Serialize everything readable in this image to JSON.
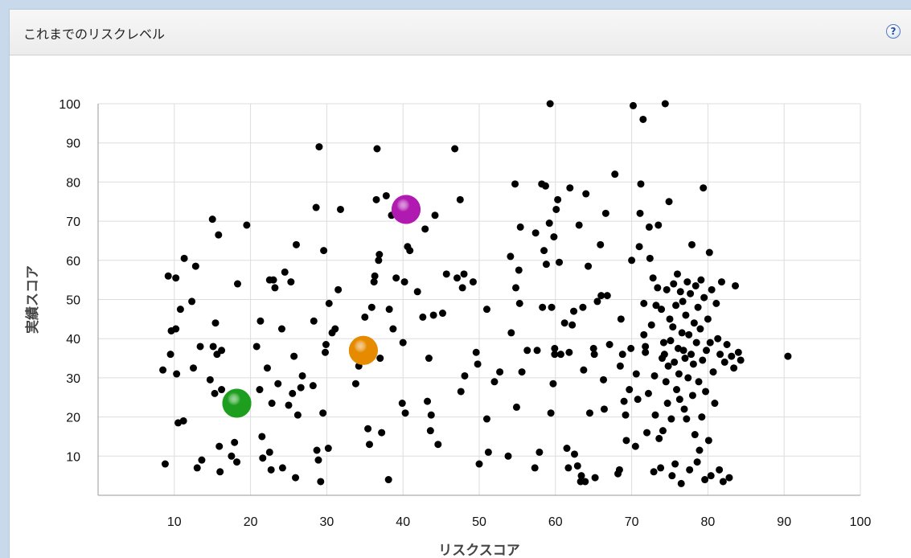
{
  "panel": {
    "title": "これまでのリスクレベル",
    "help_icon": "help-icon",
    "help_label": "?"
  },
  "chart_data": {
    "type": "scatter",
    "title": "",
    "xlabel": "リスクスコア",
    "ylabel": "実績スコア",
    "xlim": [
      0,
      100
    ],
    "ylim": [
      0,
      100
    ],
    "x_ticks": [
      10,
      20,
      30,
      40,
      50,
      60,
      70,
      80,
      90,
      100
    ],
    "y_ticks": [
      10,
      20,
      30,
      40,
      50,
      60,
      70,
      80,
      90,
      100
    ],
    "grid": true,
    "legend": "none",
    "colors": {
      "points": "#000000",
      "highlight_green": "#1e9e1e",
      "highlight_orange": "#e68a00",
      "highlight_purple": "#b01ab0",
      "grid": "#dddddd",
      "axis": "#999999"
    },
    "highlighted_points": [
      {
        "x": 18.2,
        "y": 23.5,
        "color": "#1e9e1e"
      },
      {
        "x": 34.8,
        "y": 37.0,
        "color": "#e68a00"
      },
      {
        "x": 40.4,
        "y": 73.0,
        "color": "#b01ab0"
      }
    ],
    "series": [
      {
        "points": [
          [
            8.5,
            32
          ],
          [
            8.8,
            8
          ],
          [
            9.2,
            56
          ],
          [
            9.5,
            36
          ],
          [
            9.6,
            42
          ],
          [
            10.2,
            42.5
          ],
          [
            10.2,
            55.5
          ],
          [
            10.3,
            31
          ],
          [
            10.5,
            18.5
          ],
          [
            10.8,
            47.5
          ],
          [
            11.2,
            19
          ],
          [
            11.3,
            60.5
          ],
          [
            12.3,
            49.5
          ],
          [
            12.5,
            32.5
          ],
          [
            12.8,
            58.5
          ],
          [
            13.0,
            7
          ],
          [
            13.4,
            38
          ],
          [
            13.6,
            9
          ],
          [
            14.7,
            29.5
          ],
          [
            15.0,
            70.5
          ],
          [
            15.1,
            38
          ],
          [
            15.3,
            26
          ],
          [
            15.4,
            44
          ],
          [
            15.6,
            36
          ],
          [
            15.8,
            66.5
          ],
          [
            15.9,
            12.5
          ],
          [
            16.0,
            6
          ],
          [
            16.2,
            27
          ],
          [
            16.2,
            37
          ],
          [
            17.5,
            10
          ],
          [
            17.9,
            13.5
          ],
          [
            18.2,
            8.5
          ],
          [
            18.3,
            54
          ],
          [
            19.5,
            69
          ],
          [
            20.8,
            38
          ],
          [
            21.2,
            27
          ],
          [
            21.3,
            44.5
          ],
          [
            21.5,
            15
          ],
          [
            21.6,
            9.5
          ],
          [
            22.2,
            32.5
          ],
          [
            22.5,
            55
          ],
          [
            22.5,
            11
          ],
          [
            22.7,
            6.5
          ],
          [
            22.8,
            23.5
          ],
          [
            23.0,
            55
          ],
          [
            23.2,
            53
          ],
          [
            23.6,
            28.5
          ],
          [
            24.1,
            42.5
          ],
          [
            24.2,
            7
          ],
          [
            24.5,
            57
          ],
          [
            25.0,
            23
          ],
          [
            25.3,
            54.5
          ],
          [
            25.5,
            26
          ],
          [
            25.7,
            35.5
          ],
          [
            25.9,
            4.5
          ],
          [
            26.0,
            64
          ],
          [
            26.2,
            20.5
          ],
          [
            26.6,
            27.5
          ],
          [
            26.8,
            30.5
          ],
          [
            28.2,
            28
          ],
          [
            28.3,
            44.5
          ],
          [
            28.6,
            73.5
          ],
          [
            28.7,
            11.5
          ],
          [
            28.9,
            9
          ],
          [
            29.0,
            89
          ],
          [
            29.2,
            3.5
          ],
          [
            29.5,
            21
          ],
          [
            29.6,
            62.5
          ],
          [
            29.8,
            36.5
          ],
          [
            29.9,
            38.5
          ],
          [
            30.2,
            12
          ],
          [
            30.3,
            49
          ],
          [
            30.7,
            41.5
          ],
          [
            31.1,
            42.5
          ],
          [
            31.5,
            52.5
          ],
          [
            31.8,
            73
          ],
          [
            33.8,
            28.5
          ],
          [
            34.2,
            33
          ],
          [
            35.0,
            45.5
          ],
          [
            35.2,
            36.5
          ],
          [
            35.4,
            17
          ],
          [
            35.6,
            13
          ],
          [
            35.9,
            48
          ],
          [
            36.2,
            54.5
          ],
          [
            36.3,
            56
          ],
          [
            36.5,
            75.5
          ],
          [
            36.6,
            88.5
          ],
          [
            36.8,
            60
          ],
          [
            36.9,
            61.5
          ],
          [
            37.0,
            35
          ],
          [
            37.2,
            16
          ],
          [
            37.8,
            76.5
          ],
          [
            38.1,
            4
          ],
          [
            38.2,
            47.5
          ],
          [
            38.5,
            71.5
          ],
          [
            38.7,
            42.5
          ],
          [
            39.1,
            55.5
          ],
          [
            39.9,
            23.5
          ],
          [
            40.0,
            39
          ],
          [
            40.2,
            54.5
          ],
          [
            40.3,
            21
          ],
          [
            40.6,
            63.5
          ],
          [
            40.9,
            62.5
          ],
          [
            41.9,
            52
          ],
          [
            42.6,
            45.5
          ],
          [
            42.9,
            68
          ],
          [
            43.2,
            24
          ],
          [
            43.4,
            35
          ],
          [
            43.6,
            16.5
          ],
          [
            43.7,
            20.5
          ],
          [
            44.0,
            46
          ],
          [
            44.2,
            71.5
          ],
          [
            44.6,
            13
          ],
          [
            45.2,
            46.5
          ],
          [
            45.7,
            56.5
          ],
          [
            46.8,
            88.5
          ],
          [
            47.1,
            55.5
          ],
          [
            47.5,
            75.5
          ],
          [
            47.6,
            26.5
          ],
          [
            47.8,
            53
          ],
          [
            48.0,
            56.5
          ],
          [
            48.1,
            30.5
          ],
          [
            49.2,
            54.5
          ],
          [
            49.6,
            36.5
          ],
          [
            49.8,
            33.5
          ],
          [
            50.0,
            8
          ],
          [
            51.0,
            47.5
          ],
          [
            51.0,
            19.5
          ],
          [
            51.2,
            11
          ],
          [
            52.0,
            29
          ],
          [
            52.7,
            31.5
          ],
          [
            53.8,
            10
          ],
          [
            54.1,
            61
          ],
          [
            54.2,
            41.5
          ],
          [
            54.7,
            79.5
          ],
          [
            54.8,
            53
          ],
          [
            54.9,
            22.5
          ],
          [
            55.2,
            57.5
          ],
          [
            55.3,
            49
          ],
          [
            55.4,
            68.5
          ],
          [
            55.6,
            31.5
          ],
          [
            56.3,
            37
          ],
          [
            57.3,
            7
          ],
          [
            57.4,
            67
          ],
          [
            57.6,
            37
          ],
          [
            57.9,
            11
          ],
          [
            58.2,
            79.5
          ],
          [
            58.3,
            48
          ],
          [
            58.5,
            62.5
          ],
          [
            58.7,
            79
          ],
          [
            58.8,
            59
          ],
          [
            59.2,
            69.5
          ],
          [
            59.3,
            100
          ],
          [
            59.4,
            21
          ],
          [
            59.5,
            48
          ],
          [
            59.7,
            28.5
          ],
          [
            59.8,
            66
          ],
          [
            59.9,
            36
          ],
          [
            59.9,
            37.5
          ],
          [
            60.1,
            73
          ],
          [
            60.3,
            75.5
          ],
          [
            60.5,
            59.5
          ],
          [
            60.7,
            36
          ],
          [
            61.2,
            44
          ],
          [
            61.5,
            12
          ],
          [
            61.7,
            7
          ],
          [
            61.8,
            36.5
          ],
          [
            61.9,
            78.5
          ],
          [
            62.2,
            43.5
          ],
          [
            62.4,
            47
          ],
          [
            62.5,
            10.5
          ],
          [
            62.9,
            7.5
          ],
          [
            63.1,
            69
          ],
          [
            63.3,
            3.5
          ],
          [
            63.4,
            5
          ],
          [
            63.6,
            48
          ],
          [
            63.7,
            32
          ],
          [
            63.9,
            3.5
          ],
          [
            64.0,
            77
          ],
          [
            64.3,
            58.5
          ],
          [
            64.5,
            21
          ],
          [
            65.0,
            37.5
          ],
          [
            65.1,
            36
          ],
          [
            65.2,
            4.5
          ],
          [
            65.5,
            49.5
          ],
          [
            65.9,
            64
          ],
          [
            66.0,
            51
          ],
          [
            66.3,
            29.5
          ],
          [
            66.4,
            22
          ],
          [
            66.6,
            72
          ],
          [
            66.8,
            51
          ],
          [
            67.1,
            38.5
          ],
          [
            67.8,
            82
          ],
          [
            68.2,
            5.5
          ],
          [
            68.4,
            6.5
          ],
          [
            68.5,
            33
          ],
          [
            68.6,
            45
          ],
          [
            68.8,
            36
          ],
          [
            69.0,
            24
          ],
          [
            69.2,
            20.5
          ],
          [
            69.3,
            14
          ],
          [
            69.7,
            27
          ],
          [
            69.9,
            37.5
          ],
          [
            70.0,
            60
          ],
          [
            70.2,
            99.5
          ],
          [
            70.5,
            12.5
          ],
          [
            70.6,
            31
          ],
          [
            70.8,
            24.5
          ],
          [
            71.0,
            63.5
          ],
          [
            71.1,
            72
          ],
          [
            71.2,
            79.5
          ],
          [
            71.5,
            96
          ],
          [
            71.6,
            49
          ],
          [
            71.6,
            41
          ],
          [
            71.8,
            38
          ],
          [
            71.8,
            36.5
          ],
          [
            72.0,
            16
          ],
          [
            72.2,
            26
          ],
          [
            72.3,
            68.5
          ],
          [
            72.4,
            60.5
          ],
          [
            72.6,
            43.5
          ],
          [
            72.8,
            55.5
          ],
          [
            72.9,
            6
          ],
          [
            73.0,
            30.5
          ],
          [
            73.1,
            20.5
          ],
          [
            73.2,
            48.5
          ],
          [
            73.4,
            53
          ],
          [
            73.5,
            69
          ],
          [
            73.6,
            14.5
          ],
          [
            73.8,
            7
          ],
          [
            73.9,
            47.5
          ],
          [
            74.0,
            35
          ],
          [
            74.1,
            16.5
          ],
          [
            74.2,
            39
          ],
          [
            74.3,
            36
          ],
          [
            74.4,
            100
          ],
          [
            74.5,
            29
          ],
          [
            74.6,
            52.5
          ],
          [
            74.7,
            23.5
          ],
          [
            74.8,
            33
          ],
          [
            74.9,
            75
          ],
          [
            75.0,
            45
          ],
          [
            75.1,
            39.5
          ],
          [
            75.2,
            19.5
          ],
          [
            75.3,
            5
          ],
          [
            75.4,
            43
          ],
          [
            75.5,
            54
          ],
          [
            75.6,
            34
          ],
          [
            75.7,
            8
          ],
          [
            75.8,
            48.5
          ],
          [
            75.9,
            27
          ],
          [
            76.0,
            56.5
          ],
          [
            76.1,
            37.5
          ],
          [
            76.2,
            31
          ],
          [
            76.3,
            24.5
          ],
          [
            76.4,
            52
          ],
          [
            76.5,
            3
          ],
          [
            76.6,
            41.5
          ],
          [
            76.7,
            49.5
          ],
          [
            76.8,
            37
          ],
          [
            76.9,
            22
          ],
          [
            77.0,
            35
          ],
          [
            77.1,
            46
          ],
          [
            77.2,
            19.5
          ],
          [
            77.3,
            54.5
          ],
          [
            77.4,
            30
          ],
          [
            77.5,
            41
          ],
          [
            77.6,
            6.5
          ],
          [
            77.7,
            51.5
          ],
          [
            77.8,
            36
          ],
          [
            77.9,
            64
          ],
          [
            78.0,
            25.5
          ],
          [
            78.1,
            33.5
          ],
          [
            78.2,
            44
          ],
          [
            78.3,
            15.5
          ],
          [
            78.4,
            53.5
          ],
          [
            78.5,
            39
          ],
          [
            78.6,
            8.5
          ],
          [
            78.7,
            48
          ],
          [
            78.8,
            29
          ],
          [
            78.9,
            11.5
          ],
          [
            79.0,
            42.5
          ],
          [
            79.1,
            55
          ],
          [
            79.2,
            20
          ],
          [
            79.3,
            34.5
          ],
          [
            79.4,
            78.5
          ],
          [
            79.5,
            50.5
          ],
          [
            79.6,
            4
          ],
          [
            79.7,
            26.5
          ],
          [
            79.8,
            37
          ],
          [
            80.0,
            45
          ],
          [
            80.1,
            14
          ],
          [
            80.2,
            62
          ],
          [
            80.3,
            39
          ],
          [
            80.4,
            5
          ],
          [
            80.5,
            52.5
          ],
          [
            80.7,
            31.5
          ],
          [
            80.9,
            23.5
          ],
          [
            81.1,
            49
          ],
          [
            81.3,
            40
          ],
          [
            81.5,
            6.5
          ],
          [
            81.6,
            36
          ],
          [
            81.8,
            54.5
          ],
          [
            82.0,
            3.5
          ],
          [
            82.2,
            34
          ],
          [
            82.5,
            38.5
          ],
          [
            82.8,
            4.5
          ],
          [
            83.1,
            35.5
          ],
          [
            83.4,
            32.5
          ],
          [
            83.6,
            53.5
          ],
          [
            84.0,
            36.5
          ],
          [
            84.3,
            34.5
          ],
          [
            90.5,
            35.5
          ]
        ]
      }
    ]
  }
}
